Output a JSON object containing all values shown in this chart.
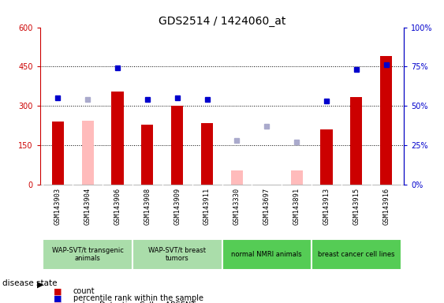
{
  "title": "GDS2514 / 1424060_at",
  "samples_display": [
    "GSM143903",
    "GSM143904",
    "GSM143906",
    "GSM143908",
    "GSM143909",
    "GSM143911",
    "GSM143330",
    "GSM143697",
    "GSM143891",
    "GSM143913",
    "GSM143915",
    "GSM143916"
  ],
  "count_values": [
    240,
    null,
    355,
    230,
    300,
    235,
    null,
    null,
    null,
    210,
    335,
    490
  ],
  "count_absent_values": [
    null,
    243,
    null,
    null,
    null,
    null,
    55,
    null,
    55,
    null,
    null,
    null
  ],
  "rank_values": [
    55,
    null,
    74,
    54,
    55,
    54,
    null,
    null,
    null,
    53,
    73,
    76
  ],
  "rank_absent_values": [
    null,
    54,
    null,
    null,
    null,
    null,
    28,
    37,
    27,
    null,
    null,
    null
  ],
  "ylim_left": [
    0,
    600
  ],
  "ylim_right": [
    0,
    100
  ],
  "yticks_left": [
    0,
    150,
    300,
    450,
    600
  ],
  "yticks_right": [
    0,
    25,
    50,
    75,
    100
  ],
  "ytick_labels_left": [
    "0",
    "150",
    "300",
    "450",
    "600"
  ],
  "ytick_labels_right": [
    "0%",
    "25%",
    "50%",
    "75%",
    "100%"
  ],
  "group_defs": [
    {
      "start": 0,
      "end": 2,
      "label": "WAP-SVT/t transgenic\nanimals",
      "color": "#aaddaa"
    },
    {
      "start": 3,
      "end": 5,
      "label": "WAP-SVT/t breast\ntumors",
      "color": "#aaddaa"
    },
    {
      "start": 6,
      "end": 8,
      "label": "normal NMRI animals",
      "color": "#55cc55"
    },
    {
      "start": 9,
      "end": 11,
      "label": "breast cancer cell lines",
      "color": "#55cc55"
    }
  ],
  "bar_color_present": "#cc0000",
  "bar_color_absent": "#ffbbbb",
  "dot_color_present": "#0000cc",
  "dot_color_absent": "#aaaacc",
  "tick_bg_color": "#cccccc",
  "plot_bg_color": "#ffffff",
  "bar_width": 0.4,
  "dot_size": 5.0
}
